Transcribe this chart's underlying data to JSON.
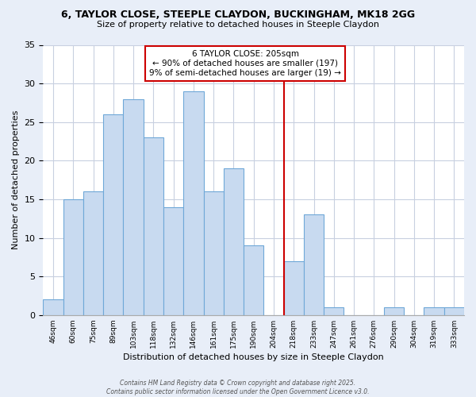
{
  "title_line1": "6, TAYLOR CLOSE, STEEPLE CLAYDON, BUCKINGHAM, MK18 2GG",
  "title_line2": "Size of property relative to detached houses in Steeple Claydon",
  "xlabel": "Distribution of detached houses by size in Steeple Claydon",
  "ylabel": "Number of detached properties",
  "bar_labels": [
    "46sqm",
    "60sqm",
    "75sqm",
    "89sqm",
    "103sqm",
    "118sqm",
    "132sqm",
    "146sqm",
    "161sqm",
    "175sqm",
    "190sqm",
    "204sqm",
    "218sqm",
    "233sqm",
    "247sqm",
    "261sqm",
    "276sqm",
    "290sqm",
    "304sqm",
    "319sqm",
    "333sqm"
  ],
  "bar_values": [
    2,
    15,
    16,
    26,
    28,
    23,
    14,
    29,
    16,
    19,
    9,
    0,
    7,
    13,
    1,
    0,
    0,
    1,
    0,
    1,
    1
  ],
  "bar_color": "#c8daf0",
  "bar_edge_color": "#6fa8d8",
  "vline_color": "#cc0000",
  "annotation_title": "6 TAYLOR CLOSE: 205sqm",
  "annotation_line1": "← 90% of detached houses are smaller (197)",
  "annotation_line2": "9% of semi-detached houses are larger (19) →",
  "ylim": [
    0,
    35
  ],
  "yticks": [
    0,
    5,
    10,
    15,
    20,
    25,
    30,
    35
  ],
  "fig_background_color": "#e8eef8",
  "plot_background_color": "#ffffff",
  "grid_color": "#c8d0e0",
  "footer_line1": "Contains HM Land Registry data © Crown copyright and database right 2025.",
  "footer_line2": "Contains public sector information licensed under the Open Government Licence v3.0."
}
